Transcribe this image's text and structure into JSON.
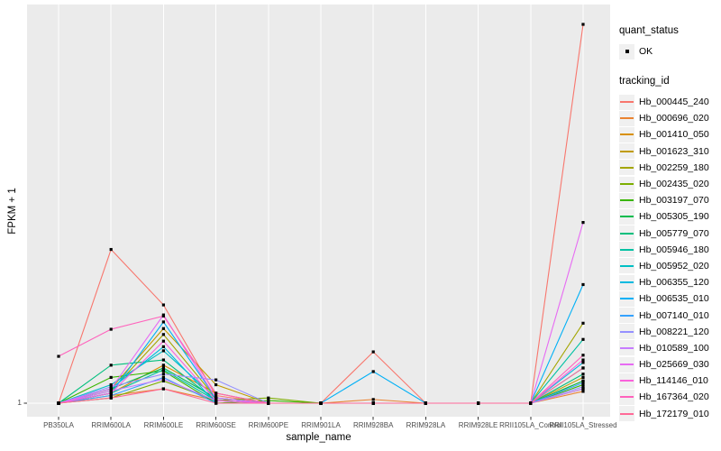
{
  "figure": {
    "background": "#FFFFFF",
    "panel_bg": "#EBEBEB",
    "grid_color": "#FFFFFF",
    "axis_text_color": "#4D4D4D",
    "axis_tick_color": "#333333",
    "marker_color": "#000000"
  },
  "chart_data": {
    "type": "line",
    "title": "",
    "xlabel": "sample_name",
    "ylabel": "FPKM + 1",
    "scale_y": "log10",
    "ylim": [
      1,
      1445
    ],
    "y_tick_labels": [
      "1"
    ],
    "grid": "white vertical line per category; white horizontal line at y=1",
    "marker": "small black square at every point (quant_status = OK)",
    "legend_position": "right",
    "legend": {
      "quant_status_title": "quant_status",
      "quant_ok_label": "OK",
      "tracking_id_title": "tracking_id"
    },
    "categories": [
      "PB350LA",
      "RRIM600LA",
      "RRIM600LE",
      "RRIM600SE",
      "RRIM600PE",
      "RRIM901LA",
      "RRIM928BA",
      "RRIM928LA",
      "RRIM928LE",
      "RRII105LA_Control",
      "RRII105LA_Stressed"
    ],
    "series": [
      {
        "name": "Hb_000445_240",
        "color": "#F8766D",
        "values": [
          1,
          16.5,
          6.0,
          1.15,
          1,
          1,
          2.55,
          1,
          1,
          1,
          1000
        ]
      },
      {
        "name": "Hb_000696_020",
        "color": "#EA8331",
        "values": [
          1,
          1.15,
          1.3,
          1.05,
          1,
          1,
          1.07,
          1,
          1,
          1,
          1.24
        ]
      },
      {
        "name": "Hb_001410_050",
        "color": "#D89000",
        "values": [
          1,
          1.2,
          2.0,
          1.2,
          1,
          1,
          1,
          1,
          1,
          1,
          1.5
        ]
      },
      {
        "name": "Hb_001623_310",
        "color": "#C09B00",
        "values": [
          1,
          1.3,
          3.9,
          1.4,
          1,
          1,
          1,
          1,
          1,
          1,
          1.6
        ]
      },
      {
        "name": "Hb_002259_180",
        "color": "#A3A500",
        "values": [
          1,
          1.25,
          3.5,
          1.1,
          1,
          1,
          1,
          1,
          1,
          1,
          4.3
        ]
      },
      {
        "name": "Hb_002435_020",
        "color": "#7CAE00",
        "values": [
          1,
          1.1,
          1.5,
          1.05,
          1.1,
          1,
          1,
          1,
          1,
          1,
          1.3
        ]
      },
      {
        "name": "Hb_003197_070",
        "color": "#39B600",
        "values": [
          1,
          1.6,
          1.8,
          1,
          1.05,
          1,
          1,
          1,
          1,
          1,
          1.4
        ]
      },
      {
        "name": "Hb_005305_190",
        "color": "#00BB4E",
        "values": [
          1,
          1.3,
          1.9,
          1.1,
          1,
          1,
          1,
          1,
          1,
          1,
          1.5
        ]
      },
      {
        "name": "Hb_005779_070",
        "color": "#00BF7D",
        "values": [
          1,
          2.0,
          2.2,
          1.05,
          1,
          1,
          1,
          1,
          1,
          1,
          1.7
        ]
      },
      {
        "name": "Hb_005946_180",
        "color": "#00C1A3",
        "values": [
          1,
          1.2,
          1.84,
          1.05,
          1,
          1,
          1,
          1,
          1,
          1,
          3.2
        ]
      },
      {
        "name": "Hb_005952_020",
        "color": "#00BFC4",
        "values": [
          1,
          1.4,
          2.6,
          1.1,
          1,
          1,
          1,
          1,
          1,
          1,
          1.9
        ]
      },
      {
        "name": "Hb_006355_120",
        "color": "#00BAE0",
        "values": [
          1,
          1.3,
          2.8,
          1,
          1,
          1,
          1,
          1,
          1,
          1,
          2.1
        ]
      },
      {
        "name": "Hb_006535_010",
        "color": "#00B0F6",
        "values": [
          1,
          1.2,
          4.4,
          1.1,
          1,
          1,
          1.78,
          1,
          1,
          1,
          8.7
        ]
      },
      {
        "name": "Hb_007140_010",
        "color": "#35A2FF",
        "values": [
          1,
          1.15,
          1.6,
          1,
          1,
          1,
          1,
          1,
          1,
          1,
          1.45
        ]
      },
      {
        "name": "Hb_008221_120",
        "color": "#9590FF",
        "values": [
          1,
          1.35,
          1.7,
          1.53,
          1,
          1,
          1,
          1,
          1,
          1,
          1.35
        ]
      },
      {
        "name": "Hb_010589_100",
        "color": "#C77CFF",
        "values": [
          1,
          1.25,
          1.55,
          1.05,
          1,
          1,
          1,
          1,
          1,
          1,
          1.3
        ]
      },
      {
        "name": "Hb_025669_030",
        "color": "#E76BF3",
        "values": [
          1,
          1.3,
          5.0,
          1.1,
          1,
          1,
          1,
          1,
          1,
          1,
          27
        ]
      },
      {
        "name": "Hb_114146_010",
        "color": "#FA62DB",
        "values": [
          1,
          1.2,
          3.1,
          1.05,
          1,
          1,
          1,
          1,
          1,
          1,
          2.2
        ]
      },
      {
        "name": "Hb_167364_020",
        "color": "#FF62BC",
        "values": [
          2.35,
          3.85,
          4.9,
          1.2,
          1,
          1,
          1,
          1,
          1,
          1,
          2.4
        ]
      },
      {
        "name": "Hb_172179_010",
        "color": "#FF6A98",
        "values": [
          1,
          1.1,
          1.3,
          1,
          1,
          1,
          1,
          1,
          1,
          1,
          1.9
        ]
      }
    ]
  }
}
